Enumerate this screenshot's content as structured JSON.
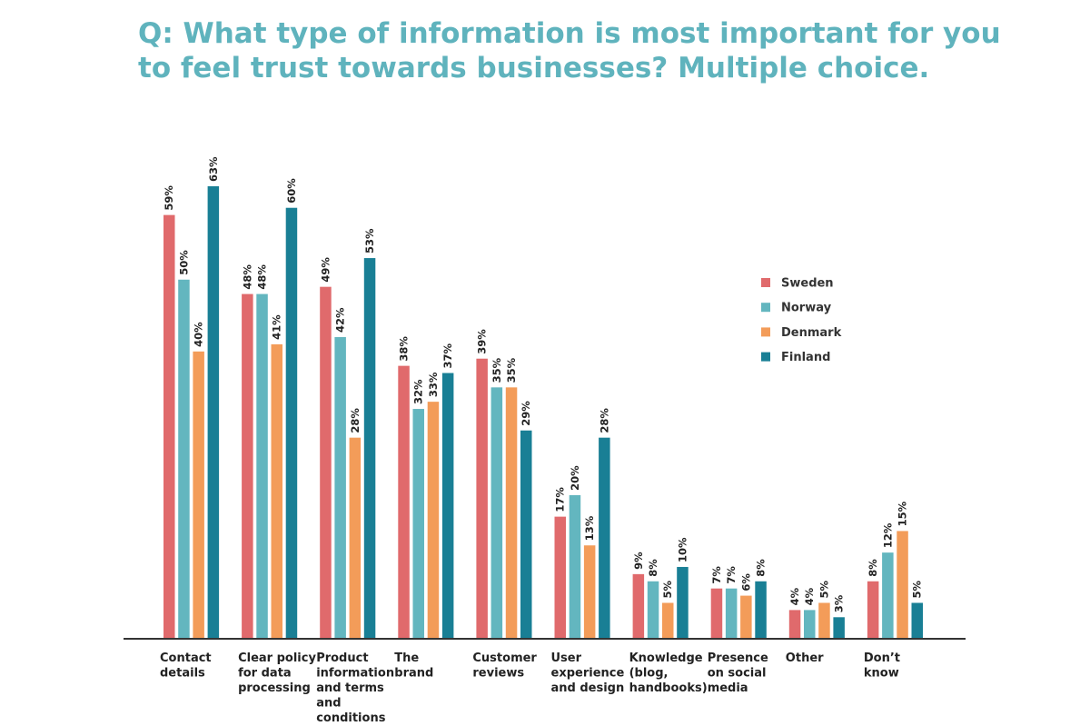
{
  "chart_data": {
    "type": "bar",
    "title_lines": [
      "Q: What type of information is most important for you",
      "to feel trust towards businesses? Multiple choice."
    ],
    "categories": [
      [
        "Contact",
        "details"
      ],
      [
        "Clear policy",
        "for data",
        "processing"
      ],
      [
        "Product",
        "information",
        "and terms",
        "and",
        "conditions"
      ],
      [
        "The",
        "brand"
      ],
      [
        "Customer",
        "reviews"
      ],
      [
        "User",
        "experience",
        "and design"
      ],
      [
        "Knowledge",
        "(blog,",
        "handbooks)"
      ],
      [
        "Presence",
        "on social",
        "media"
      ],
      [
        "Other"
      ],
      [
        "Don’t",
        "know"
      ]
    ],
    "series": [
      {
        "name": "Sweden",
        "color": "#e06a6c",
        "values": [
          59,
          48,
          49,
          38,
          39,
          17,
          9,
          7,
          4,
          8
        ],
        "labels": [
          "59%",
          "48%",
          "49%",
          "38%",
          "39%",
          "17%",
          "9%",
          "7%",
          "4%",
          "8%"
        ]
      },
      {
        "name": "Norway",
        "color": "#63b6bf",
        "values": [
          50,
          48,
          42,
          32,
          35,
          20,
          8,
          7,
          4,
          12
        ],
        "labels": [
          "50%",
          "48%",
          "42%",
          "32%",
          "35%",
          "20%",
          "8%",
          "7%",
          "4%",
          "12%"
        ]
      },
      {
        "name": "Denmark",
        "color": "#f39c59",
        "values": [
          40,
          41,
          28,
          33,
          35,
          13,
          5,
          6,
          5,
          15
        ],
        "labels": [
          "40%",
          "41%",
          "28%",
          "33%",
          "35%",
          "13%",
          "5%",
          "6%",
          "5%",
          "15%"
        ]
      },
      {
        "name": "Finland",
        "color": "#197f95",
        "values": [
          63,
          60,
          53,
          37,
          29,
          28,
          10,
          8,
          3,
          5
        ],
        "labels": [
          "63%",
          "60%",
          "53%",
          "37%",
          "29%",
          "28%",
          "10%",
          "8%",
          "3%",
          "5%"
        ]
      }
    ],
    "ylim": [
      0,
      63
    ],
    "xlabel": "",
    "ylabel": "",
    "grid": false,
    "legend_position": "right"
  }
}
